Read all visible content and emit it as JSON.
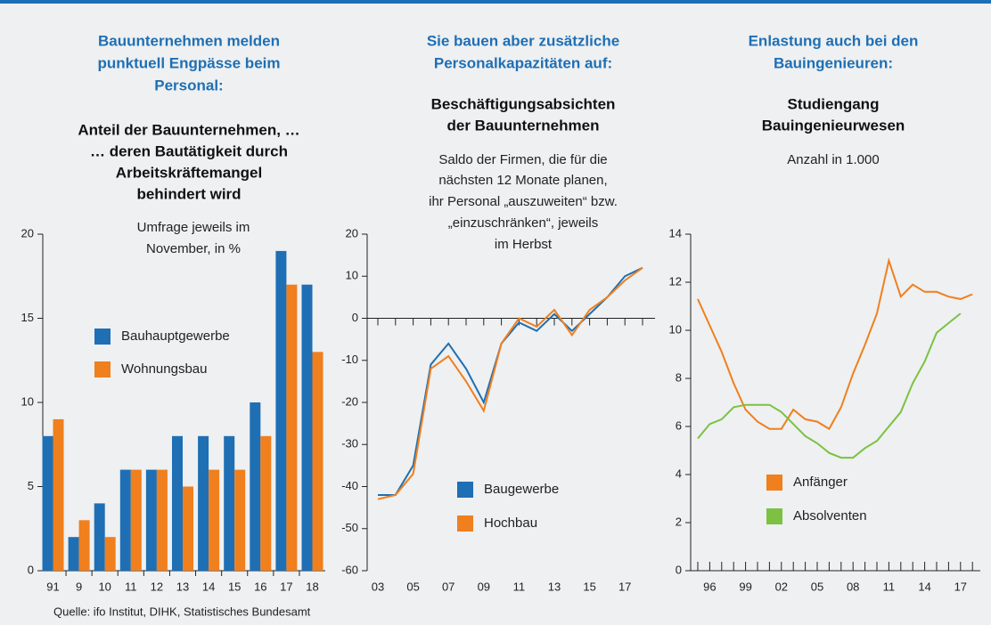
{
  "source": "Quelle: ifo Institut, DIHK, Statistisches Bundesamt",
  "chart_data": [
    {
      "type": "bar",
      "heading": [
        "Bauunternehmen melden",
        "punktuell Engpässe beim",
        "Personal:"
      ],
      "title": [
        "Anteil der Bauunternehmen, …",
        "… deren Bautätigkeit durch",
        "Arbeitskräftemangel",
        "behindert wird"
      ],
      "subtitle": [
        "Umfrage jeweils im",
        "November, in %"
      ],
      "categories": [
        "91",
        "9",
        "10",
        "11",
        "12",
        "13",
        "14",
        "15",
        "16",
        "17",
        "18"
      ],
      "series": [
        {
          "name": "Bauhauptgewerbe",
          "color": "#1f6fb4",
          "values": [
            8,
            2,
            4,
            6,
            6,
            8,
            8,
            8,
            10,
            19,
            17
          ]
        },
        {
          "name": "Wohnungsbau",
          "color": "#f07f1e",
          "values": [
            9,
            3,
            2,
            6,
            6,
            5,
            6,
            6,
            8,
            17,
            13
          ]
        }
      ],
      "ylim": [
        0,
        20
      ],
      "yticks": [
        0,
        5,
        10,
        15,
        20
      ]
    },
    {
      "type": "line",
      "heading": [
        "Sie bauen aber zusätzliche",
        "Personalkapazitäten auf:"
      ],
      "title": [
        "Beschäftigungsabsichten",
        "der Bauunternehmen"
      ],
      "subtitle": [
        "Saldo der Firmen, die für die",
        "nächsten 12 Monate planen,",
        "ihr Personal „auszuweiten“ bzw.",
        "„einzuschränken“, jeweils",
        "im Herbst"
      ],
      "categories": [
        "03",
        null,
        "05",
        null,
        "07",
        null,
        "09",
        null,
        "11",
        null,
        "13",
        null,
        "15",
        null,
        "17",
        null
      ],
      "series": [
        {
          "name": "Baugewerbe",
          "color": "#1f6fb4",
          "values": [
            -42,
            -42,
            -35,
            -11,
            -6,
            -12,
            -20,
            -6,
            -1,
            -3,
            1,
            -3,
            1,
            5,
            10,
            12
          ]
        },
        {
          "name": "Hochbau",
          "color": "#f07f1e",
          "values": [
            -43,
            -42,
            -37,
            -12,
            -9,
            -15,
            -22,
            -6,
            0,
            -2,
            2,
            -4,
            2,
            5,
            9,
            12
          ]
        }
      ],
      "ylim": [
        -60,
        20
      ],
      "yticks": [
        -60,
        -50,
        -40,
        -30,
        -20,
        -10,
        0,
        10,
        20
      ]
    },
    {
      "type": "line",
      "heading": [
        "Enlastung auch bei den",
        "Bauingenieuren:"
      ],
      "title": [
        "Studiengang",
        "Bauingenieurwesen"
      ],
      "subtitle": [
        "Anzahl in 1.000"
      ],
      "categories": [
        null,
        "96",
        null,
        null,
        "99",
        null,
        null,
        "02",
        null,
        null,
        "05",
        null,
        null,
        "08",
        null,
        null,
        "11",
        null,
        null,
        "14",
        null,
        null,
        "17",
        null
      ],
      "series": [
        {
          "name": "Anfänger",
          "color": "#f07f1e",
          "values": [
            11.3,
            10.2,
            9.1,
            7.8,
            6.7,
            6.2,
            5.9,
            5.9,
            6.7,
            6.3,
            6.2,
            5.9,
            6.8,
            8.2,
            9.4,
            10.7,
            12.9,
            11.4,
            11.9,
            11.6,
            11.6,
            11.4,
            11.3,
            11.5
          ]
        },
        {
          "name": "Absolventen",
          "color": "#7cc142",
          "values": [
            5.5,
            6.1,
            6.3,
            6.8,
            6.9,
            6.9,
            6.9,
            6.6,
            6.1,
            5.6,
            5.3,
            4.9,
            4.7,
            4.7,
            5.1,
            5.4,
            6.0,
            6.6,
            7.8,
            8.7,
            9.9,
            10.3,
            10.7,
            null
          ]
        }
      ],
      "ylim": [
        0,
        14
      ],
      "yticks": [
        0,
        2,
        4,
        6,
        8,
        10,
        12,
        14
      ]
    }
  ]
}
